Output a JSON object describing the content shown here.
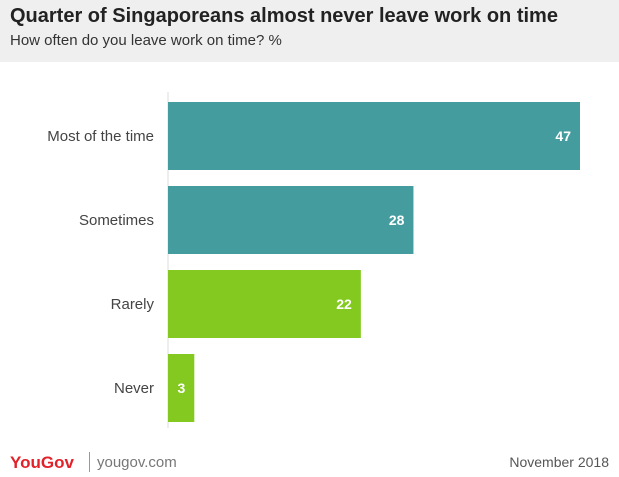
{
  "header": {
    "title": "Quarter of Singaporeans almost never leave work on time",
    "subtitle": "How often do you leave work on time? %"
  },
  "chart_data": {
    "type": "bar",
    "orientation": "horizontal",
    "categories": [
      "Most of the time",
      "Sometimes",
      "Rarely",
      "Never"
    ],
    "values": [
      47,
      28,
      22,
      3
    ],
    "bar_colors": [
      "#459c9f",
      "#459c9f",
      "#83c91f",
      "#83c91f"
    ],
    "label_color": "#ffffff",
    "grid": false,
    "legend": "none"
  },
  "footer": {
    "logo_text": "YouGov",
    "url": "yougov.com",
    "date": "November 2018"
  }
}
